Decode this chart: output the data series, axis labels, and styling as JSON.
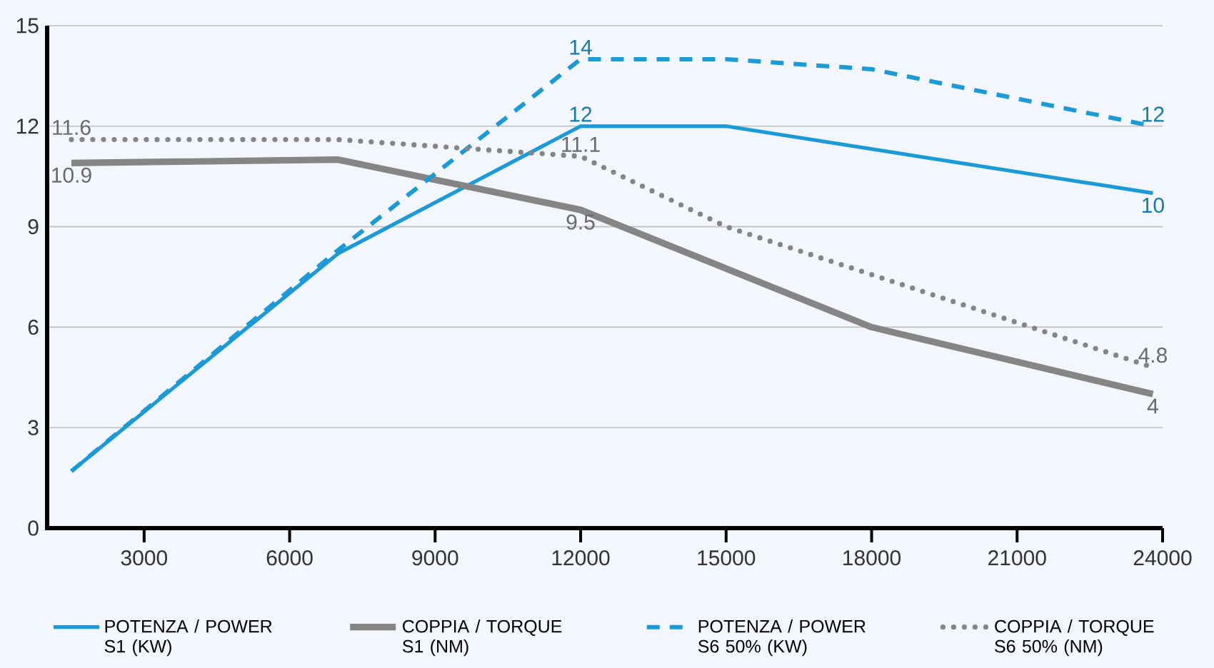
{
  "chart_data": {
    "type": "line",
    "xlim": [
      1000,
      24000
    ],
    "ylim": [
      0,
      15
    ],
    "xticks": [
      3000,
      6000,
      9000,
      12000,
      15000,
      18000,
      21000,
      24000
    ],
    "yticks": [
      0,
      3,
      6,
      9,
      12,
      15
    ],
    "grid": "y",
    "legend": "bottom",
    "series": [
      {
        "name": "POTENZA / POWER S1 (KW)",
        "color": "#1a9ad6",
        "line_style": "solid",
        "x": [
          1500,
          7000,
          12000,
          15000,
          23800
        ],
        "values": [
          1.7,
          8.2,
          12,
          12,
          10
        ],
        "value_labels": [
          null,
          null,
          "12",
          null,
          "10"
        ]
      },
      {
        "name": "COPPIA / TORQUE S1 (NM)",
        "color": "#858585",
        "line_style": "solid",
        "x": [
          1500,
          7000,
          12000,
          18000,
          23800
        ],
        "values": [
          10.9,
          11,
          9.5,
          6,
          4
        ],
        "value_labels": [
          "10.9",
          null,
          "9.5",
          null,
          "4"
        ]
      },
      {
        "name": "POTENZA / POWER S6 50% (KW)",
        "color": "#1a9ad6",
        "line_style": "dashed",
        "x": [
          1500,
          7000,
          12000,
          15000,
          18000,
          23800
        ],
        "values": [
          1.7,
          8.3,
          14,
          14,
          13.7,
          12
        ],
        "value_labels": [
          null,
          null,
          "14",
          null,
          null,
          "12"
        ]
      },
      {
        "name": "COPPIA / TORQUE S6 50% (NM)",
        "color": "#858585",
        "line_style": "dotted",
        "x": [
          1500,
          7000,
          12000,
          15000,
          23800
        ],
        "values": [
          11.6,
          11.6,
          11.1,
          9,
          4.8
        ],
        "value_labels": [
          "11.6",
          null,
          "11.1",
          null,
          "4.8"
        ]
      }
    ]
  }
}
